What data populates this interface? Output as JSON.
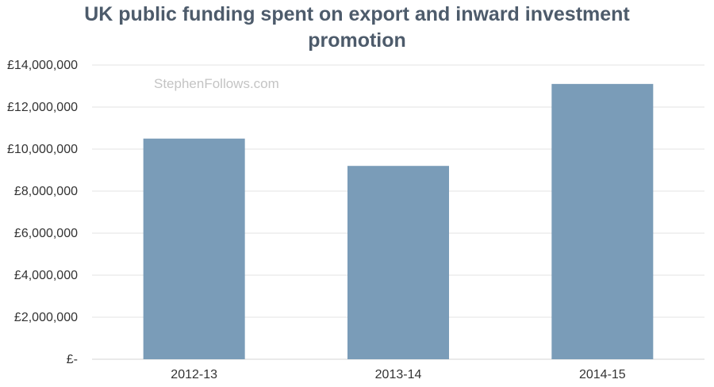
{
  "chart_data": {
    "type": "bar",
    "title_lines": [
      "UK public funding spent on export and inward investment",
      "promotion"
    ],
    "watermark": "StephenFollows.com",
    "categories": [
      "2012-13",
      "2013-14",
      "2014-15"
    ],
    "values": [
      10500000,
      9200000,
      13100000
    ],
    "ylim": [
      0,
      14000000
    ],
    "yticks": [
      0,
      2000000,
      4000000,
      6000000,
      8000000,
      10000000,
      12000000,
      14000000
    ],
    "ytick_labels": [
      "£-",
      "£2,000,000",
      "£4,000,000",
      "£6,000,000",
      "£8,000,000",
      "£10,000,000",
      "£12,000,000",
      "£14,000,000"
    ],
    "xlabel": "",
    "ylabel": "",
    "grid": true,
    "legend": "none",
    "bar_color": "#7a9cb8",
    "gridline_color": "#e3e3e3"
  }
}
